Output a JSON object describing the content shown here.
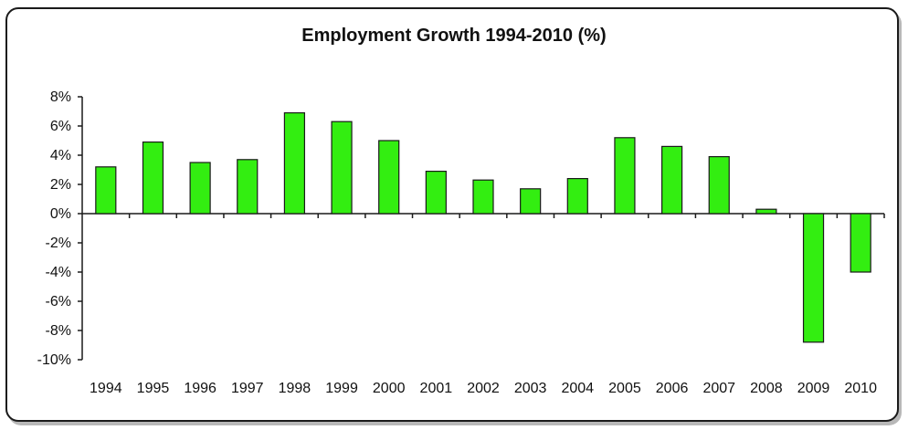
{
  "chart_data": {
    "type": "bar",
    "title": "Employment Growth 1994-2010 (%)",
    "xlabel": "",
    "ylabel": "",
    "categories": [
      "1994",
      "1995",
      "1996",
      "1997",
      "1998",
      "1999",
      "2000",
      "2001",
      "2002",
      "2003",
      "2004",
      "2005",
      "2006",
      "2007",
      "2008",
      "2009",
      "2010"
    ],
    "values": [
      3.2,
      4.9,
      3.5,
      3.7,
      6.9,
      6.3,
      5.0,
      2.9,
      2.3,
      1.7,
      2.4,
      5.2,
      4.6,
      3.9,
      0.3,
      -8.8,
      -4.0
    ],
    "ylim": [
      -10,
      8
    ],
    "yticks": [
      8,
      6,
      4,
      2,
      0,
      -2,
      -4,
      -6,
      -8,
      -10
    ],
    "ytick_labels": [
      "8%",
      "6%",
      "4%",
      "2%",
      "0%",
      "-2%",
      "-4%",
      "-6%",
      "-8%",
      "-10%"
    ],
    "grid": false,
    "legend": "none",
    "bar_color": "#33ee11",
    "bar_edge_color": "#1a1a1a"
  }
}
